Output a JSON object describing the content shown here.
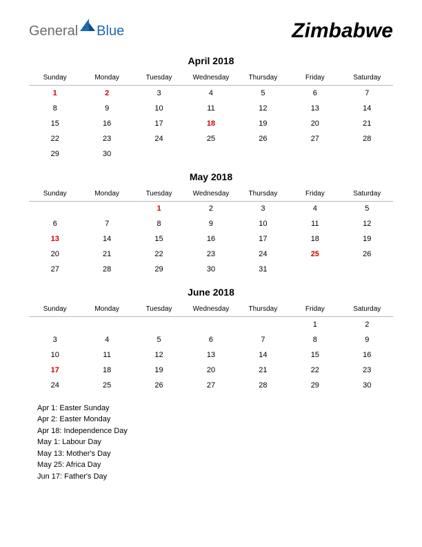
{
  "logo": {
    "text1": "General",
    "text2": "Blue",
    "text1_color": "#6b6b6b",
    "text2_color": "#1a6bb0",
    "icon_color": "#1a6bb0"
  },
  "country": "Zimbabwe",
  "weekdays": [
    "Sunday",
    "Monday",
    "Tuesday",
    "Wednesday",
    "Thursday",
    "Friday",
    "Saturday"
  ],
  "colors": {
    "holiday": "#cc0000",
    "text": "#000000",
    "header_border": "#b8b8b8",
    "background": "#ffffff"
  },
  "fontsize": {
    "country": 30,
    "month_title": 14,
    "weekday": 10,
    "day": 11,
    "holiday_list": 11
  },
  "months": [
    {
      "title": "April 2018",
      "weeks": [
        [
          {
            "d": "1",
            "h": true
          },
          {
            "d": "2",
            "h": true
          },
          {
            "d": "3"
          },
          {
            "d": "4"
          },
          {
            "d": "5"
          },
          {
            "d": "6"
          },
          {
            "d": "7"
          }
        ],
        [
          {
            "d": "8"
          },
          {
            "d": "9"
          },
          {
            "d": "10"
          },
          {
            "d": "11"
          },
          {
            "d": "12"
          },
          {
            "d": "13"
          },
          {
            "d": "14"
          }
        ],
        [
          {
            "d": "15"
          },
          {
            "d": "16"
          },
          {
            "d": "17"
          },
          {
            "d": "18",
            "h": true
          },
          {
            "d": "19"
          },
          {
            "d": "20"
          },
          {
            "d": "21"
          }
        ],
        [
          {
            "d": "22"
          },
          {
            "d": "23"
          },
          {
            "d": "24"
          },
          {
            "d": "25"
          },
          {
            "d": "26"
          },
          {
            "d": "27"
          },
          {
            "d": "28"
          }
        ],
        [
          {
            "d": "29"
          },
          {
            "d": "30"
          },
          {
            "d": ""
          },
          {
            "d": ""
          },
          {
            "d": ""
          },
          {
            "d": ""
          },
          {
            "d": ""
          }
        ]
      ]
    },
    {
      "title": "May 2018",
      "weeks": [
        [
          {
            "d": ""
          },
          {
            "d": ""
          },
          {
            "d": "1",
            "h": true
          },
          {
            "d": "2"
          },
          {
            "d": "3"
          },
          {
            "d": "4"
          },
          {
            "d": "5"
          }
        ],
        [
          {
            "d": "6"
          },
          {
            "d": "7"
          },
          {
            "d": "8"
          },
          {
            "d": "9"
          },
          {
            "d": "10"
          },
          {
            "d": "11"
          },
          {
            "d": "12"
          }
        ],
        [
          {
            "d": "13",
            "h": true
          },
          {
            "d": "14"
          },
          {
            "d": "15"
          },
          {
            "d": "16"
          },
          {
            "d": "17"
          },
          {
            "d": "18"
          },
          {
            "d": "19"
          }
        ],
        [
          {
            "d": "20"
          },
          {
            "d": "21"
          },
          {
            "d": "22"
          },
          {
            "d": "23"
          },
          {
            "d": "24"
          },
          {
            "d": "25",
            "h": true
          },
          {
            "d": "26"
          }
        ],
        [
          {
            "d": "27"
          },
          {
            "d": "28"
          },
          {
            "d": "29"
          },
          {
            "d": "30"
          },
          {
            "d": "31"
          },
          {
            "d": ""
          },
          {
            "d": ""
          }
        ]
      ]
    },
    {
      "title": "June 2018",
      "weeks": [
        [
          {
            "d": ""
          },
          {
            "d": ""
          },
          {
            "d": ""
          },
          {
            "d": ""
          },
          {
            "d": ""
          },
          {
            "d": "1"
          },
          {
            "d": "2"
          }
        ],
        [
          {
            "d": "3"
          },
          {
            "d": "4"
          },
          {
            "d": "5"
          },
          {
            "d": "6"
          },
          {
            "d": "7"
          },
          {
            "d": "8"
          },
          {
            "d": "9"
          }
        ],
        [
          {
            "d": "10"
          },
          {
            "d": "11"
          },
          {
            "d": "12"
          },
          {
            "d": "13"
          },
          {
            "d": "14"
          },
          {
            "d": "15"
          },
          {
            "d": "16"
          }
        ],
        [
          {
            "d": "17",
            "h": true
          },
          {
            "d": "18"
          },
          {
            "d": "19"
          },
          {
            "d": "20"
          },
          {
            "d": "21"
          },
          {
            "d": "22"
          },
          {
            "d": "23"
          }
        ],
        [
          {
            "d": "24"
          },
          {
            "d": "25"
          },
          {
            "d": "26"
          },
          {
            "d": "27"
          },
          {
            "d": "28"
          },
          {
            "d": "29"
          },
          {
            "d": "30"
          }
        ]
      ]
    }
  ],
  "holidays": [
    "Apr 1: Easter Sunday",
    "Apr 2: Easter Monday",
    "Apr 18: Independence Day",
    "May 1: Labour Day",
    "May 13: Mother's Day",
    "May 25: Africa Day",
    "Jun 17: Father's Day"
  ]
}
